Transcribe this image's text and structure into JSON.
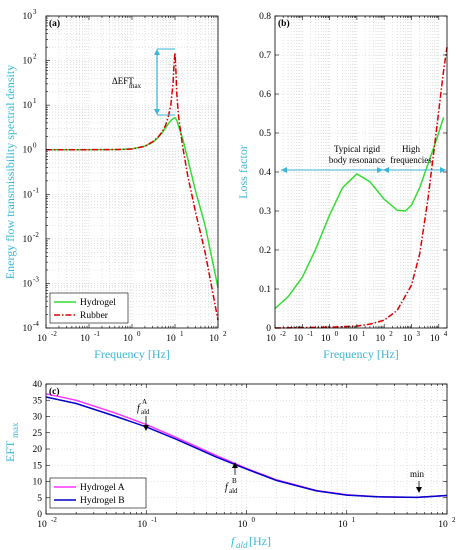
{
  "chart_data": [
    {
      "type": "line",
      "panel_label": "(a)",
      "xlabel": "Frequency [Hz]",
      "ylabel": "Energy flow transmissibility spectral density",
      "x_scale": "log",
      "y_scale": "log",
      "xlim": [
        0.01,
        100
      ],
      "ylim": [
        0.0001,
        1000
      ],
      "x_ticks": [
        "10^-2",
        "10^-1",
        "10^0",
        "10^1",
        "10^2"
      ],
      "y_ticks": [
        "10^-4",
        "10^-3",
        "10^-2",
        "10^-1",
        "10^0",
        "10^1",
        "10^2",
        "10^3"
      ],
      "grid": true,
      "legend_position": "bottom-left",
      "annotation": {
        "text": "ΔEFT",
        "subscript": "max"
      },
      "series": [
        {
          "name": "Hydrogel",
          "color": "#33dd33",
          "style": "solid",
          "x": [
            0.01,
            0.1,
            0.5,
            1,
            2,
            3,
            4,
            5,
            6,
            7,
            8,
            9,
            10,
            11,
            12,
            15,
            20,
            30,
            50,
            100
          ],
          "y": [
            1,
            1,
            1.01,
            1.05,
            1.2,
            1.45,
            1.85,
            2.4,
            3.1,
            3.8,
            4.5,
            5.0,
            5.2,
            4.6,
            3.5,
            1.8,
            0.6,
            0.12,
            0.02,
            0.0008
          ]
        },
        {
          "name": "Rubber",
          "color": "#dd0000",
          "style": "dashdot",
          "x": [
            0.01,
            0.1,
            0.5,
            1,
            2,
            3,
            4,
            5,
            6,
            7,
            8,
            9,
            9.5,
            10,
            10.5,
            11,
            12,
            15,
            20,
            30,
            50,
            100
          ],
          "y": [
            1,
            1,
            1.01,
            1.04,
            1.2,
            1.5,
            1.9,
            2.5,
            3.5,
            5.5,
            10,
            30,
            80,
            150,
            60,
            18,
            6,
            1.2,
            0.25,
            0.04,
            0.005,
            0.00015
          ]
        }
      ]
    },
    {
      "type": "line",
      "panel_label": "(b)",
      "xlabel": "Frequency [Hz]",
      "ylabel": "Loss factor",
      "x_scale": "log",
      "y_scale": "linear",
      "xlim": [
        0.01,
        20000
      ],
      "ylim": [
        0,
        0.8
      ],
      "x_ticks": [
        "10^-2",
        "10^-1",
        "10^0",
        "10^1",
        "10^2",
        "10^3",
        "10^4"
      ],
      "y_ticks": [
        "0",
        "0.1",
        "0.2",
        "0.3",
        "0.4",
        "0.5",
        "0.6",
        "0.7",
        "0.8"
      ],
      "grid": true,
      "annotations": [
        "Typical rigid",
        "body resonance",
        "High",
        "frequencies"
      ],
      "series": [
        {
          "name": "Hydrogel",
          "color": "#33dd33",
          "style": "solid",
          "x": [
            0.01,
            0.03,
            0.1,
            0.3,
            1,
            3,
            10,
            30,
            100,
            300,
            600,
            1000,
            2000,
            4000,
            8000,
            15000
          ],
          "y": [
            0.05,
            0.08,
            0.13,
            0.2,
            0.29,
            0.36,
            0.395,
            0.375,
            0.33,
            0.302,
            0.3,
            0.315,
            0.36,
            0.42,
            0.48,
            0.54
          ]
        },
        {
          "name": "Rubber",
          "color": "#dd0000",
          "style": "dashdot",
          "x": [
            0.01,
            0.1,
            1,
            10,
            30,
            100,
            300,
            1000,
            2000,
            4000,
            8000,
            15000,
            20000
          ],
          "y": [
            0,
            0.001,
            0.002,
            0.005,
            0.01,
            0.02,
            0.045,
            0.11,
            0.19,
            0.33,
            0.5,
            0.66,
            0.72
          ]
        }
      ]
    },
    {
      "type": "line",
      "panel_label": "(c)",
      "xlabel": "f",
      "xlabel_sub": "ald",
      "xlabel_unit": " [Hz]",
      "ylabel": "EFT",
      "ylabel_sub": "max",
      "x_scale": "log",
      "y_scale": "linear",
      "xlim": [
        0.01,
        100
      ],
      "ylim": [
        0,
        40
      ],
      "x_ticks": [
        "10^-2",
        "10^-1",
        "10^0",
        "10^1",
        "10^2"
      ],
      "y_ticks": [
        "0",
        "5",
        "10",
        "15",
        "20",
        "25",
        "30",
        "35",
        "40"
      ],
      "grid": true,
      "legend_position": "bottom-left",
      "annotations": [
        {
          "text": "f",
          "sub": "ald",
          "sup": "A"
        },
        {
          "text": "f",
          "sub": "ald",
          "sup": "B"
        },
        {
          "text": "min"
        }
      ],
      "series": [
        {
          "name": "Hydrogel A",
          "color": "#ff33ff",
          "style": "solid",
          "x": [
            0.01,
            0.02,
            0.05,
            0.1,
            0.2,
            0.5,
            1,
            2,
            5,
            10,
            20,
            50,
            100
          ],
          "y": [
            37,
            35,
            31,
            27.5,
            23.5,
            18,
            14,
            10.5,
            7.2,
            5.9,
            5.3,
            5.1,
            5.7
          ]
        },
        {
          "name": "Hydrogel B",
          "color": "#0000cc",
          "style": "solid",
          "x": [
            0.01,
            0.02,
            0.05,
            0.1,
            0.2,
            0.5,
            1,
            2,
            5,
            10,
            20,
            50,
            100
          ],
          "y": [
            36,
            34,
            30,
            26.8,
            23,
            17.5,
            13.8,
            10.3,
            7.1,
            5.8,
            5.3,
            5.1,
            5.7
          ]
        }
      ]
    }
  ]
}
